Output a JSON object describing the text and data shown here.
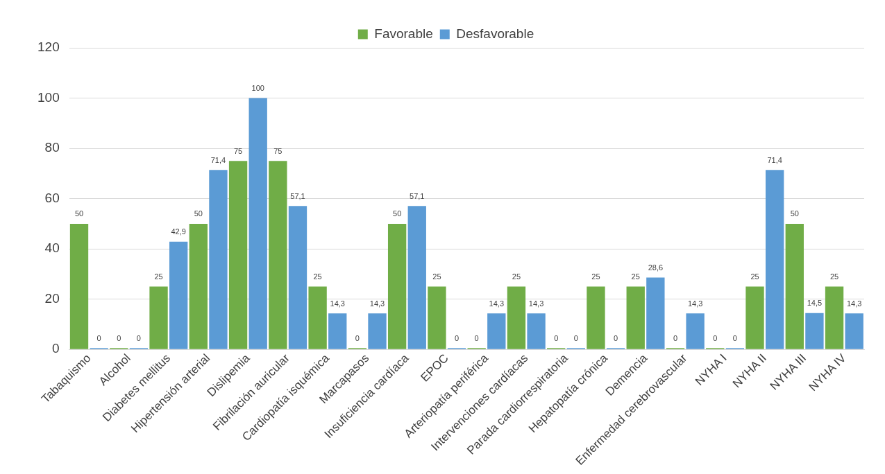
{
  "chart_data": {
    "type": "bar",
    "categories": [
      "Tabaquismo",
      "Alcohol",
      "Diabetes mellitus",
      "Hipertensión arterial",
      "Dislipemia",
      "Fibrilación auricular",
      "Cardiopatía isquémica",
      "Marcapasos",
      "Insuficiencia cardíaca",
      "EPOC",
      "Arteriopatía periférica",
      "Intervenciones cardíacas",
      "Parada cardiorrespiratoria",
      "Hepatopatía crónica",
      "Demencia",
      "Enfermedad cerebrovascular",
      "NYHA I",
      "NYHA II",
      "NYHA III",
      "NYHA IV"
    ],
    "series": [
      {
        "name": "Favorable",
        "color": "#70ad47",
        "values": [
          50,
          0,
          25,
          50,
          75,
          75,
          25,
          0,
          50,
          25,
          0,
          25,
          0,
          25,
          25,
          0,
          0,
          25,
          50,
          25
        ],
        "value_labels": [
          "50",
          "0",
          "25",
          "50",
          "75",
          "75",
          "25",
          "0",
          "50",
          "25",
          "0",
          "25",
          "0",
          "25",
          "25",
          "0",
          "0",
          "25",
          "50",
          "25"
        ]
      },
      {
        "name": "Desfavorable",
        "color": "#5b9bd5",
        "values": [
          0,
          0,
          42.9,
          71.4,
          100,
          57.1,
          14.3,
          14.3,
          57.1,
          0,
          14.3,
          14.3,
          0,
          0,
          28.6,
          14.3,
          0,
          71.4,
          14.5,
          14.3
        ],
        "value_labels": [
          "0",
          "0",
          "42,9",
          "71,4",
          "100",
          "57,1",
          "14,3",
          "14,3",
          "57,1",
          "0",
          "14,3",
          "14,3",
          "0",
          "0",
          "28,6",
          "14,3",
          "0",
          "71,4",
          "14,5",
          "14,3"
        ]
      }
    ],
    "ylim": [
      0,
      120
    ],
    "yticks": [
      0,
      20,
      40,
      60,
      80,
      100,
      120
    ],
    "grid": "y",
    "legend": "top"
  }
}
